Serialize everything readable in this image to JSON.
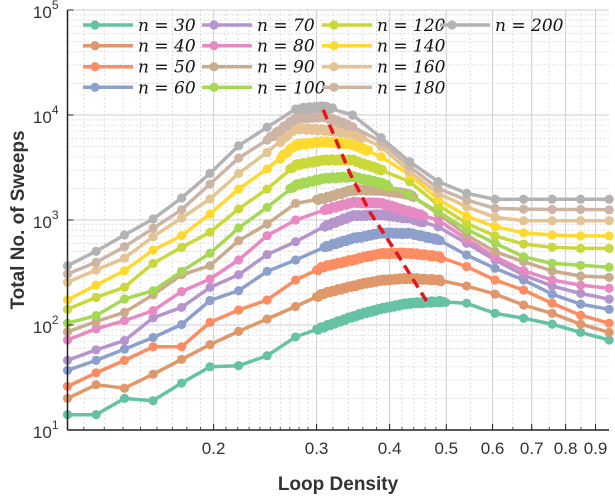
{
  "chart_data": {
    "type": "line",
    "xlabel": "Loop Density",
    "ylabel": "Total No. of Sweeps",
    "xscale": "log",
    "yscale": "log",
    "xlim": [
      0.1125,
      0.949
    ],
    "ylim": [
      10,
      100000
    ],
    "grid": true,
    "legend_position": "top-left",
    "xticks": [
      0.2,
      0.3,
      0.4,
      0.5,
      0.6,
      0.7,
      0.8,
      0.9
    ],
    "xtick_labels": [
      "0.2",
      "0.3",
      "0.4",
      "0.5",
      "0.6",
      "0.7",
      "0.8",
      "0.9"
    ],
    "yticks": [
      10,
      100,
      1000,
      10000,
      100000
    ],
    "ytick_labels": [
      {
        "base": "10",
        "exp": "1"
      },
      {
        "base": "10",
        "exp": "2"
      },
      {
        "base": "10",
        "exp": "3"
      },
      {
        "base": "10",
        "exp": "4"
      },
      {
        "base": "10",
        "exp": "5"
      }
    ],
    "x": [
      0.1125,
      0.1259,
      0.1408,
      0.1576,
      0.1763,
      0.1972,
      0.2207,
      0.2469,
      0.2762,
      0.309,
      0.3457,
      0.3868,
      0.4328,
      0.4842,
      0.5417,
      0.606,
      0.678,
      0.7586,
      0.8487,
      0.9495
    ],
    "series": [
      {
        "name": "n = 30",
        "color": "#66c2a5",
        "dense_x_range": [
          0.3,
          0.5
        ],
        "values": [
          14,
          14,
          20,
          19,
          28,
          40,
          41,
          51,
          77,
          96,
          120,
          144,
          161,
          167,
          161,
          129,
          116,
          102,
          85,
          72
        ]
      },
      {
        "name": "n = 40",
        "color": "#e0976a",
        "dense_x_range": [
          0.3,
          0.49
        ],
        "values": [
          20,
          27,
          25,
          34,
          47,
          65,
          87,
          114,
          150,
          200,
          235,
          268,
          278,
          268,
          235,
          197,
          155,
          129,
          102,
          85
        ]
      },
      {
        "name": "n = 50",
        "color": "#fc8d62",
        "dense_x_range": [
          0.3,
          0.49
        ],
        "values": [
          26,
          35,
          46,
          62,
          62,
          106,
          139,
          173,
          268,
          360,
          416,
          482,
          482,
          450,
          360,
          268,
          215,
          161,
          124,
          104
        ]
      },
      {
        "name": "n = 60",
        "color": "#8da0cb",
        "dense_x_range": [
          0.31,
          0.49
        ],
        "values": [
          37,
          46,
          59,
          76,
          101,
          171,
          212,
          324,
          416,
          550,
          668,
          747,
          747,
          650,
          464,
          347,
          268,
          197,
          158,
          141
        ]
      },
      {
        "name": "n = 70",
        "color": "#b695cc",
        "dense_x_range": [
          0.31,
          0.46
        ],
        "values": [
          46,
          58,
          71,
          117,
          147,
          228,
          301,
          468,
          621,
          863,
          1100,
          1117,
          1040,
          863,
          600,
          416,
          299,
          235,
          200,
          176
        ]
      },
      {
        "name": "n = 80",
        "color": "#e78ac3",
        "dense_x_range": [
          0.31,
          0.46
        ],
        "values": [
          72,
          92,
          110,
          137,
          208,
          274,
          416,
          709,
          1000,
          1240,
          1470,
          1440,
          1200,
          1000,
          655,
          447,
          329,
          268,
          240,
          224
        ]
      },
      {
        "name": "n = 90",
        "color": "#c9ac8c",
        "dense_x_range": [
          0.3,
          0.44
        ],
        "values": [
          86,
          108,
          132,
          194,
          301,
          367,
          635,
          916,
          1440,
          1610,
          1930,
          1930,
          1750,
          1150,
          720,
          499,
          401,
          327,
          293,
          284
        ]
      },
      {
        "name": "n = 100",
        "color": "#a6d854",
        "dense_x_range": [
          0.27,
          0.4
        ],
        "values": [
          104,
          123,
          177,
          212,
          324,
          482,
          840,
          1320,
          2150,
          2490,
          2590,
          2240,
          1730,
          1200,
          815,
          600,
          447,
          386,
          370,
          355
        ]
      },
      {
        "name": "n = 120",
        "color": "#cbd83a",
        "dense_x_range": [
          0.27,
          0.39
        ],
        "values": [
          141,
          183,
          229,
          386,
          549,
          764,
          1275,
          1970,
          3340,
          3730,
          3730,
          2990,
          2320,
          1390,
          929,
          705,
          590,
          550,
          537,
          537
        ]
      },
      {
        "name": "n = 140",
        "color": "#ffd92f",
        "dense_x_range": [
          0.26,
          0.37
        ],
        "values": [
          173,
          240,
          329,
          517,
          709,
          1140,
          1970,
          3060,
          5180,
          5570,
          5250,
          4010,
          2690,
          1575,
          1090,
          863,
          757,
          719,
          705,
          705
        ]
      },
      {
        "name": "n = 160",
        "color": "#e5c494",
        "dense_x_range": [
          0.26,
          0.36
        ],
        "values": [
          255,
          334,
          434,
          693,
          1045,
          1585,
          2780,
          4400,
          7460,
          7200,
          6680,
          5000,
          2880,
          1795,
          1340,
          1060,
          985,
          985,
          985,
          985
        ]
      },
      {
        "name": "n = 180",
        "color": "#ccb5a6",
        "dense_x_range": [
          0.25,
          0.34
        ],
        "values": [
          306,
          395,
          557,
          832,
          1254,
          2200,
          3890,
          5780,
          9300,
          9650,
          7740,
          5570,
          3220,
          2000,
          1550,
          1290,
          1270,
          1260,
          1260,
          1250
        ]
      },
      {
        "name": "n = 200",
        "color": "#b3b3b3",
        "dense_x_range": [
          0.28,
          0.32
        ],
        "values": [
          367,
          503,
          719,
          1023,
          1620,
          2780,
          5100,
          7640,
          11400,
          12000,
          10000,
          6080,
          3590,
          2320,
          1795,
          1575,
          1575,
          1575,
          1575,
          1575
        ]
      }
    ],
    "trend_line": {
      "color": "#e8141b",
      "style": "dashed",
      "points": [
        [
          0.308,
          11200
        ],
        [
          0.343,
          2700
        ],
        [
          0.371,
          1160
        ],
        [
          0.415,
          447
        ],
        [
          0.463,
          167
        ]
      ]
    }
  }
}
